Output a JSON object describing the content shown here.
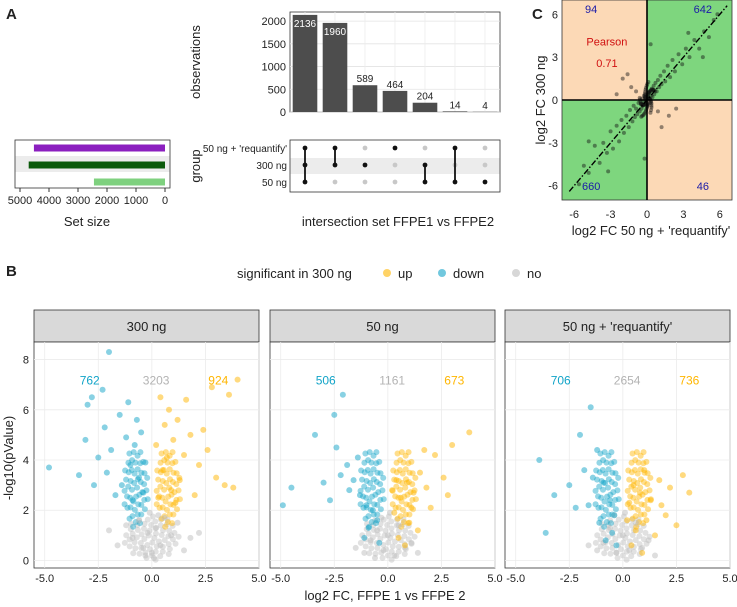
{
  "panels": {
    "a": "A",
    "b": "B",
    "c": "C"
  },
  "chart_data": [
    {
      "id": "upset",
      "type": "bar",
      "title": "",
      "xlabel": "intersection set FFPE1 vs FFPE2",
      "ylabel": "observations",
      "ylim": [
        0,
        2200
      ],
      "yticks": [
        0,
        500,
        1000,
        1500,
        2000
      ],
      "values": [
        2136,
        1960,
        589,
        464,
        204,
        14,
        4
      ],
      "value_labels": [
        "2136",
        "1960",
        "589",
        "464",
        "204",
        "14",
        "4"
      ],
      "group_label": "group",
      "groups": [
        "50 ng + 'requantify'",
        "300 ng",
        "50 ng"
      ],
      "membership": [
        [
          0,
          1,
          2
        ],
        [
          0,
          1
        ],
        [
          1
        ],
        [
          0
        ],
        [
          1,
          2
        ],
        [
          0,
          2
        ],
        [
          2
        ]
      ],
      "set_size": {
        "xlabel": "Set size",
        "xticks": [
          5000,
          4000,
          3000,
          2000,
          1000,
          0
        ],
        "xtick_labels": [
          "5000",
          "4000",
          "3000",
          "2000",
          "1000",
          "0"
        ],
        "values": [
          4520,
          4700,
          2450
        ],
        "colors": [
          "#8b1fbf",
          "#0b5a0b",
          "#7fd17f"
        ]
      }
    },
    {
      "id": "scatter-c",
      "type": "scatter",
      "xlabel": "log2 FC 50 ng + 'requantify'",
      "ylabel": "log2 FC 300 ng",
      "xlim": [
        -7,
        7
      ],
      "ylim": [
        -7,
        7
      ],
      "ticks": [
        -6,
        -3,
        0,
        3,
        6
      ],
      "tick_labels": [
        "-6",
        "-3",
        "0",
        "3",
        "6"
      ],
      "quadrant_counts": {
        "top_left": "94",
        "top_right": "642",
        "bottom_left": "660",
        "bottom_right": "46"
      },
      "pearson_label": "Pearson",
      "pearson_value": "0.71",
      "colors": {
        "agree": "#7ed67e",
        "disagree": "#fcd9b6",
        "counts": "#1a1aa8",
        "pearson": "#d01010"
      },
      "points": [
        [
          -5.6,
          -5.9
        ],
        [
          -5.2,
          -4.6
        ],
        [
          -4.8,
          -5.1
        ],
        [
          -4.3,
          -3.2
        ],
        [
          -3.9,
          -4.4
        ],
        [
          -3.6,
          -3.0
        ],
        [
          -3.3,
          -3.7
        ],
        [
          -3.0,
          -2.2
        ],
        [
          -2.8,
          -3.4
        ],
        [
          -2.5,
          -1.8
        ],
        [
          -2.3,
          -2.9
        ],
        [
          -2.1,
          -1.4
        ],
        [
          -1.9,
          -2.3
        ],
        [
          -1.7,
          -1.1
        ],
        [
          -1.5,
          -1.9
        ],
        [
          -1.4,
          -0.7
        ],
        [
          -1.2,
          -1.5
        ],
        [
          -1.1,
          -0.4
        ],
        [
          -1.0,
          -1.2
        ],
        [
          -0.9,
          -0.6
        ],
        [
          -0.8,
          -1.0
        ],
        [
          -0.7,
          -0.2
        ],
        [
          -0.6,
          -0.8
        ],
        [
          -0.5,
          -0.3
        ],
        [
          -0.45,
          -0.6
        ],
        [
          -0.4,
          0.1
        ],
        [
          -0.35,
          -0.4
        ],
        [
          -0.3,
          -0.1
        ],
        [
          -0.25,
          0.3
        ],
        [
          -0.2,
          -0.3
        ],
        [
          -0.15,
          0.2
        ],
        [
          -0.1,
          -0.1
        ],
        [
          -0.05,
          0.4
        ],
        [
          0,
          0.0
        ],
        [
          0.05,
          -0.3
        ],
        [
          0.1,
          0.2
        ],
        [
          0.15,
          0.5
        ],
        [
          0.2,
          0.1
        ],
        [
          0.25,
          -0.2
        ],
        [
          0.3,
          0.6
        ],
        [
          0.35,
          0.3
        ],
        [
          0.4,
          0.8
        ],
        [
          0.45,
          0.2
        ],
        [
          0.5,
          0.7
        ],
        [
          0.55,
          1.0
        ],
        [
          0.6,
          0.4
        ],
        [
          0.7,
          1.2
        ],
        [
          0.8,
          0.6
        ],
        [
          0.9,
          1.4
        ],
        [
          1.0,
          0.9
        ],
        [
          1.1,
          1.7
        ],
        [
          1.2,
          1.1
        ],
        [
          1.4,
          2.0
        ],
        [
          1.5,
          1.3
        ],
        [
          1.7,
          2.4
        ],
        [
          1.9,
          1.6
        ],
        [
          2.1,
          2.8
        ],
        [
          2.3,
          2.0
        ],
        [
          2.6,
          3.2
        ],
        [
          2.9,
          2.5
        ],
        [
          3.2,
          3.6
        ],
        [
          3.5,
          3.0
        ],
        [
          3.9,
          4.2
        ],
        [
          4.3,
          3.6
        ],
        [
          4.7,
          4.8
        ],
        [
          5.1,
          4.4
        ],
        [
          5.5,
          5.6
        ],
        [
          5.8,
          6.0
        ],
        [
          -1.3,
          0.9
        ],
        [
          -2.0,
          1.5
        ],
        [
          -0.9,
          0.6
        ],
        [
          -2.5,
          0.4
        ],
        [
          -1.6,
          1.8
        ],
        [
          0.9,
          -0.8
        ],
        [
          1.8,
          -1.1
        ],
        [
          1.2,
          -1.9
        ],
        [
          2.4,
          -0.6
        ],
        [
          -4.8,
          -2.9
        ],
        [
          -3.2,
          -5.0
        ],
        [
          3.4,
          4.7
        ],
        [
          4.6,
          3.0
        ],
        [
          -0.2,
          -4.1
        ],
        [
          0.3,
          3.9
        ]
      ]
    },
    {
      "id": "volcano",
      "type": "scatter",
      "legend_title": "significant in 300 ng",
      "legend": [
        "up",
        "down",
        "no"
      ],
      "colors": {
        "up": "#ffb600",
        "down": "#12a4c8",
        "no": "#bdbdbd"
      },
      "xlabel": "log2 FC, FFPE 1 vs FFPE 2",
      "ylabel": "-log10(pValue)",
      "xlim": [
        -5.5,
        5.0
      ],
      "ylim": [
        -0.3,
        8.7
      ],
      "xticks": [
        -5,
        -2.5,
        0,
        2.5,
        5
      ],
      "xtick_labels": [
        "-5.0",
        "-2.5",
        "0.0",
        "2.5",
        "5.0"
      ],
      "yticks": [
        0,
        2,
        4,
        6,
        8
      ],
      "ytick_labels": [
        "0",
        "2",
        "4",
        "6",
        "8"
      ],
      "facets": [
        {
          "label": "300 ng",
          "down_count": "762",
          "no_count": "3203",
          "up_count": "924",
          "down_points": [
            [
              -2.0,
              8.3
            ],
            [
              -2.3,
              6.8
            ],
            [
              -2.8,
              6.5
            ],
            [
              -3.0,
              6.2
            ],
            [
              -4.8,
              3.7
            ],
            [
              -2.5,
              4.1
            ],
            [
              -3.1,
              4.8
            ],
            [
              -3.4,
              3.4
            ],
            [
              -2.7,
              3.0
            ],
            [
              -2.2,
              5.3
            ],
            [
              -1.9,
              4.4
            ],
            [
              -1.5,
              5.8
            ],
            [
              -1.2,
              4.9
            ],
            [
              -1.0,
              3.8
            ],
            [
              -0.8,
              4.6
            ],
            [
              -0.6,
              3.3
            ],
            [
              -0.5,
              5.1
            ],
            [
              -0.4,
              2.7
            ],
            [
              -1.4,
              3.0
            ],
            [
              -1.7,
              2.6
            ],
            [
              -0.9,
              2.4
            ],
            [
              -0.3,
              3.9
            ],
            [
              -2.1,
              3.5
            ],
            [
              -1.1,
              6.3
            ],
            [
              -0.7,
              5.6
            ]
          ],
          "up_points": [
            [
              0.4,
              6.5
            ],
            [
              0.6,
              5.4
            ],
            [
              0.8,
              6.0
            ],
            [
              1.0,
              4.8
            ],
            [
              1.2,
              5.6
            ],
            [
              1.5,
              4.2
            ],
            [
              1.8,
              5.0
            ],
            [
              2.2,
              3.8
            ],
            [
              2.6,
              4.4
            ],
            [
              3.0,
              3.3
            ],
            [
              3.4,
              3.0
            ],
            [
              3.8,
              2.9
            ],
            [
              4.0,
              7.2
            ],
            [
              3.6,
              6.6
            ],
            [
              2.8,
              6.9
            ],
            [
              1.3,
              3.2
            ],
            [
              0.9,
              2.8
            ],
            [
              0.5,
              3.6
            ],
            [
              0.3,
              2.5
            ],
            [
              1.1,
              2.3
            ],
            [
              2.0,
              2.6
            ],
            [
              0.7,
              4.1
            ],
            [
              1.6,
              6.4
            ],
            [
              2.4,
              5.2
            ],
            [
              0.2,
              4.6
            ]
          ],
          "no_points": [
            [
              -1.2,
              1.4
            ],
            [
              -0.9,
              0.9
            ],
            [
              -0.6,
              1.6
            ],
            [
              -0.4,
              0.5
            ],
            [
              -0.2,
              1.1
            ],
            [
              0,
              0.3
            ],
            [
              0.2,
              1.3
            ],
            [
              0.4,
              0.6
            ],
            [
              0.6,
              1.7
            ],
            [
              0.9,
              1.0
            ],
            [
              1.2,
              1.5
            ],
            [
              1.5,
              0.4
            ],
            [
              -1.6,
              0.6
            ],
            [
              1.8,
              0.9
            ],
            [
              -0.1,
              1.9
            ],
            [
              0.1,
              0.1
            ],
            [
              -0.3,
              0.2
            ],
            [
              0.3,
              1.8
            ],
            [
              -2.0,
              1.2
            ],
            [
              2.2,
              1.1
            ]
          ]
        },
        {
          "label": "50 ng",
          "down_count": "506",
          "no_count": "1161",
          "up_count": "673",
          "down_points": [
            [
              -2.1,
              6.6
            ],
            [
              -2.5,
              5.8
            ],
            [
              -3.4,
              5.0
            ],
            [
              -4.5,
              2.9
            ],
            [
              -4.9,
              2.2
            ],
            [
              -3.0,
              3.1
            ],
            [
              -2.4,
              4.5
            ],
            [
              -1.9,
              3.8
            ],
            [
              -1.6,
              3.2
            ],
            [
              -1.3,
              2.6
            ],
            [
              -1.0,
              2.2
            ],
            [
              -0.7,
              2.0
            ],
            [
              -0.5,
              1.6
            ],
            [
              -2.7,
              2.4
            ],
            [
              -1.8,
              2.8
            ],
            [
              -0.9,
              1.3
            ],
            [
              -2.2,
              3.4
            ],
            [
              -1.4,
              4.1
            ],
            [
              -0.4,
              0.7
            ],
            [
              -1.1,
              0.9
            ]
          ],
          "up_points": [
            [
              0.3,
              1.9
            ],
            [
              0.6,
              2.5
            ],
            [
              0.9,
              3.1
            ],
            [
              1.2,
              2.7
            ],
            [
              1.5,
              3.5
            ],
            [
              1.8,
              2.9
            ],
            [
              2.2,
              4.2
            ],
            [
              2.6,
              3.3
            ],
            [
              3.0,
              4.6
            ],
            [
              3.8,
              5.1
            ],
            [
              1.0,
              1.5
            ],
            [
              0.5,
              0.9
            ],
            [
              1.4,
              1.2
            ],
            [
              2.0,
              2.1
            ],
            [
              0.8,
              0.6
            ],
            [
              2.8,
              2.6
            ],
            [
              1.7,
              4.4
            ],
            [
              0.2,
              2.8
            ],
            [
              1.1,
              2.1
            ],
            [
              0.4,
              3.2
            ]
          ],
          "no_points": [
            [
              -0.8,
              0.8
            ],
            [
              -0.5,
              1.2
            ],
            [
              -0.2,
              0.4
            ],
            [
              0,
              1.0
            ],
            [
              0.3,
              0.2
            ],
            [
              0.5,
              1.4
            ],
            [
              0.8,
              0.5
            ],
            [
              -1.1,
              0.3
            ],
            [
              1.1,
              0.7
            ],
            [
              -0.3,
              1.7
            ],
            [
              0.1,
              1.9
            ],
            [
              -1.5,
              0.5
            ],
            [
              1.4,
              0.3
            ],
            [
              -0.6,
              0.1
            ]
          ]
        },
        {
          "label": "50 ng + 'requantify'",
          "down_count": "706",
          "no_count": "2654",
          "up_count": "736",
          "down_points": [
            [
              -1.5,
              6.1
            ],
            [
              -2.0,
              5.0
            ],
            [
              -3.9,
              4.0
            ],
            [
              -3.2,
              2.6
            ],
            [
              -2.5,
              3.0
            ],
            [
              -1.8,
              3.6
            ],
            [
              -1.2,
              4.4
            ],
            [
              -0.9,
              3.1
            ],
            [
              -0.6,
              2.4
            ],
            [
              -1.6,
              2.2
            ],
            [
              -0.4,
              1.8
            ],
            [
              -1.1,
              1.5
            ],
            [
              -2.2,
              2.1
            ],
            [
              -0.8,
              0.8
            ],
            [
              -1.4,
              3.3
            ],
            [
              -0.5,
              1.1
            ],
            [
              -3.6,
              1.1
            ],
            [
              -0.3,
              0.6
            ]
          ],
          "up_points": [
            [
              0.3,
              2.3
            ],
            [
              0.5,
              3.0
            ],
            [
              0.8,
              2.7
            ],
            [
              1.0,
              3.6
            ],
            [
              1.3,
              2.4
            ],
            [
              1.7,
              3.2
            ],
            [
              2.2,
              2.9
            ],
            [
              2.8,
              3.4
            ],
            [
              3.1,
              2.7
            ],
            [
              1.1,
              1.6
            ],
            [
              0.6,
              1.2
            ],
            [
              1.5,
              1.0
            ],
            [
              0.4,
              0.6
            ],
            [
              2.0,
              1.8
            ],
            [
              0.9,
              0.3
            ],
            [
              1.8,
              2.2
            ],
            [
              0.2,
              1.6
            ],
            [
              2.5,
              1.4
            ]
          ],
          "no_points": [
            [
              -0.9,
              0.7
            ],
            [
              -0.6,
              1.3
            ],
            [
              -0.3,
              0.3
            ],
            [
              0,
              1.0
            ],
            [
              0.3,
              0.4
            ],
            [
              0.6,
              1.5
            ],
            [
              0.9,
              0.5
            ],
            [
              -1.2,
              0.4
            ],
            [
              1.2,
              0.8
            ],
            [
              -0.4,
              1.8
            ],
            [
              0.1,
              1.9
            ],
            [
              -1.6,
              0.6
            ],
            [
              1.5,
              0.2
            ]
          ]
        }
      ]
    }
  ]
}
